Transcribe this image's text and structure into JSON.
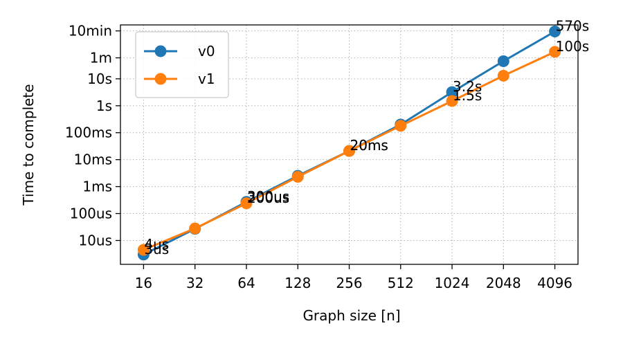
{
  "chart_data": {
    "type": "line",
    "title": "",
    "xlabel": "Graph size [n]",
    "ylabel": "Time to complete",
    "x_scale": "log2",
    "y_scale": "log",
    "grid": true,
    "legend_position": "upper-left",
    "categories": [
      "16",
      "32",
      "64",
      "128",
      "256",
      "512",
      "1024",
      "2048",
      "4096"
    ],
    "x": [
      16,
      32,
      64,
      128,
      256,
      512,
      1024,
      2048,
      4096
    ],
    "y_ticks": [
      {
        "label": "10us",
        "value": 1e-05
      },
      {
        "label": "100us",
        "value": 0.0001
      },
      {
        "label": "1ms",
        "value": 0.001
      },
      {
        "label": "10ms",
        "value": 0.01
      },
      {
        "label": "100ms",
        "value": 0.1
      },
      {
        "label": "1s",
        "value": 1
      },
      {
        "label": "10s",
        "value": 10
      },
      {
        "label": "1m",
        "value": 60
      },
      {
        "label": "10min",
        "value": 600
      }
    ],
    "ylim_seconds": [
      1.3e-06,
      1000
    ],
    "series": [
      {
        "name": "v0",
        "color": "#1f77b4",
        "values": [
          3e-06,
          2.7e-05,
          0.00027,
          0.0025,
          0.021,
          0.2,
          3.2,
          45,
          570
        ],
        "labels": [
          "3us",
          "",
          "300us",
          "",
          "20ms",
          "",
          "3.2s",
          "",
          "570s"
        ]
      },
      {
        "name": "v1",
        "color": "#ff7f0e",
        "values": [
          4.5e-06,
          2.8e-05,
          0.00024,
          0.0023,
          0.021,
          0.18,
          1.5,
          13,
          100
        ],
        "labels": [
          "4us",
          "",
          "200us",
          "",
          "20ms",
          "",
          "1.5s",
          "",
          "100s"
        ]
      }
    ]
  }
}
